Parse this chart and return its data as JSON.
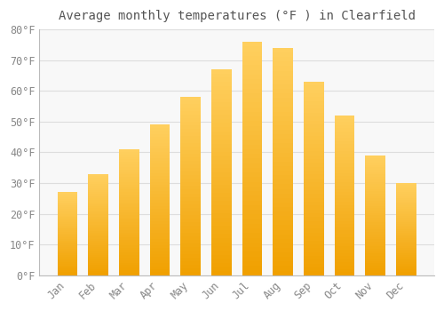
{
  "title": "Average monthly temperatures (°F ) in Clearfield",
  "months": [
    "Jan",
    "Feb",
    "Mar",
    "Apr",
    "May",
    "Jun",
    "Jul",
    "Aug",
    "Sep",
    "Oct",
    "Nov",
    "Dec"
  ],
  "values": [
    27.0,
    33.0,
    41.0,
    49.0,
    58.0,
    67.0,
    76.0,
    74.0,
    63.0,
    52.0,
    39.0,
    30.0
  ],
  "bar_color_top": "#FFD060",
  "bar_color_bottom": "#F0A000",
  "bar_edge_color": "#E09000",
  "background_color": "#FFFFFF",
  "plot_bg_color": "#F8F8F8",
  "grid_color": "#DDDDDD",
  "text_color": "#888888",
  "title_color": "#555555",
  "ylim": [
    0,
    80
  ],
  "yticks": [
    0,
    10,
    20,
    30,
    40,
    50,
    60,
    70,
    80
  ],
  "title_fontsize": 10,
  "tick_fontsize": 8.5,
  "font_family": "monospace"
}
